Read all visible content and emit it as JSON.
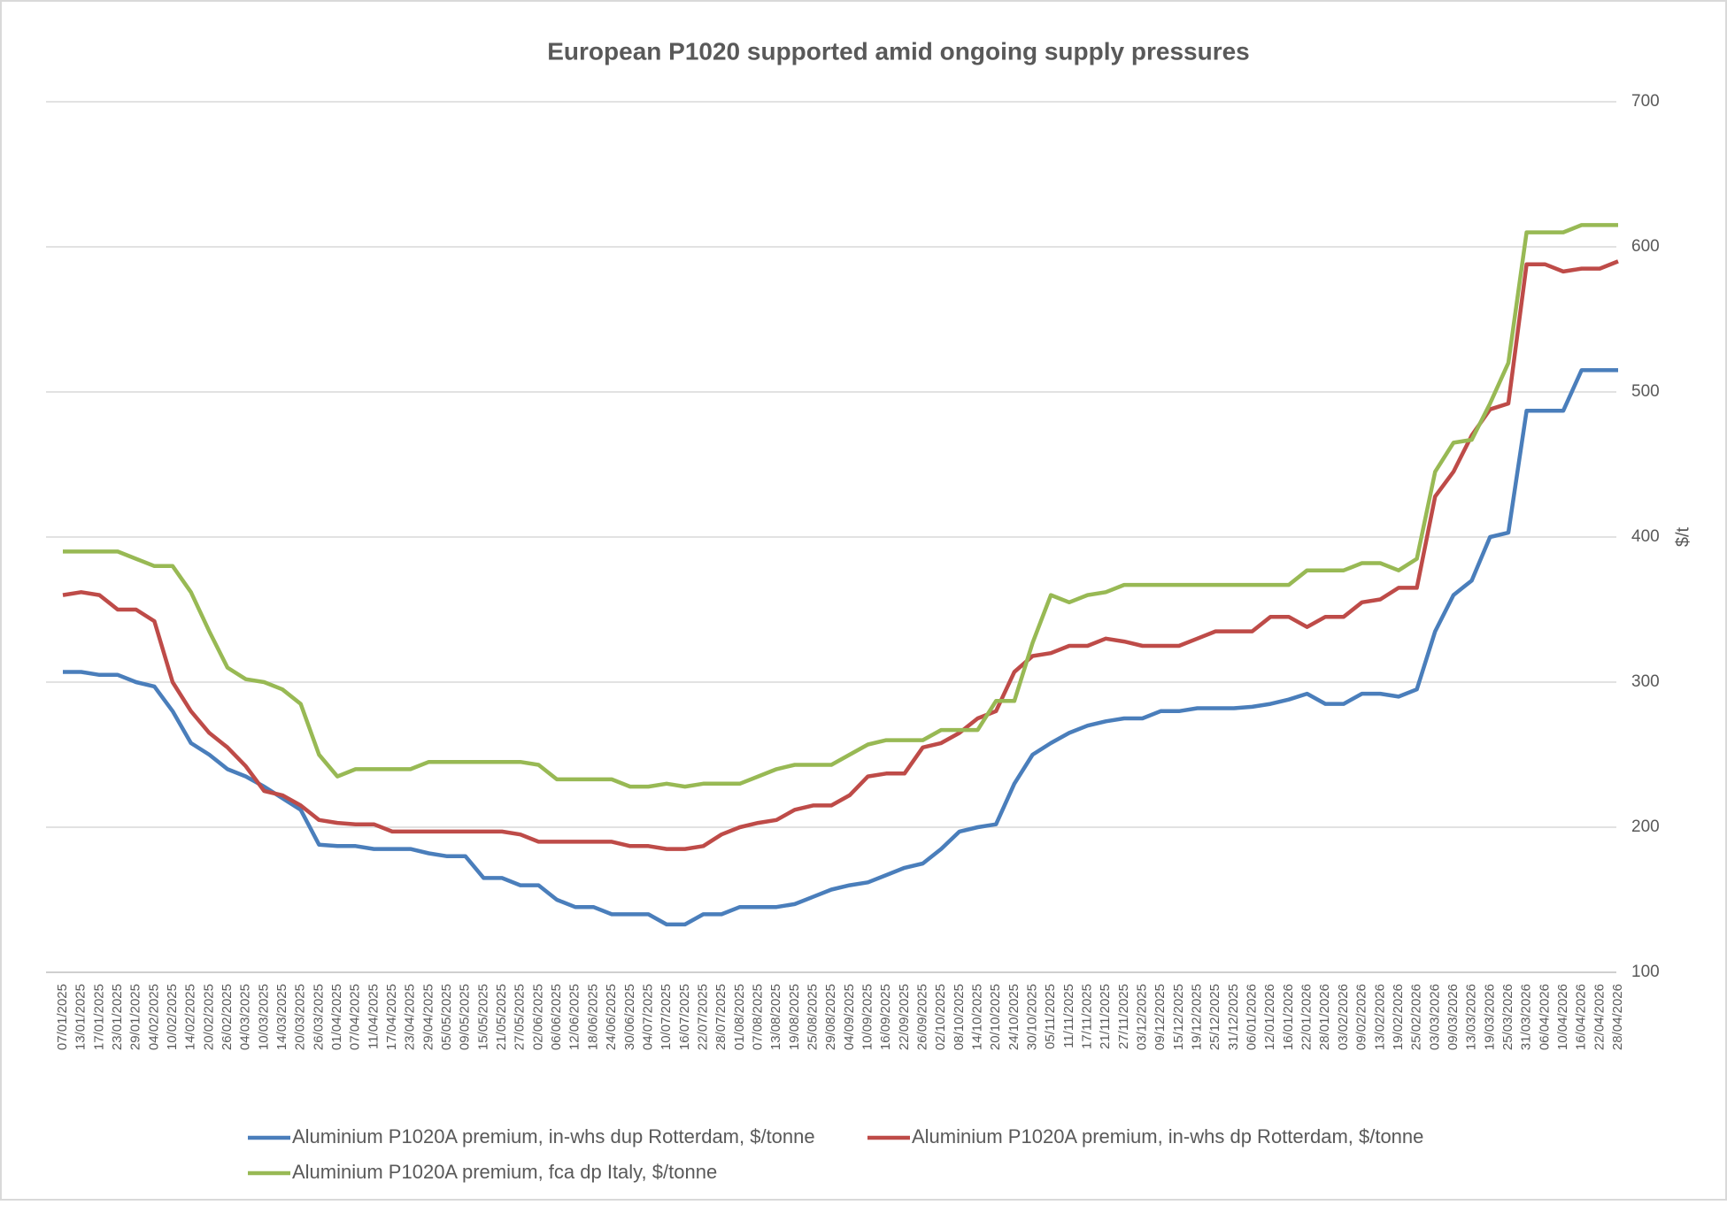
{
  "chart_data": {
    "type": "line",
    "title": "European P1020 supported amid ongoing supply pressures",
    "y_axis_label": "$/t",
    "categories": [
      "07/01/2025",
      "13/01/2025",
      "17/01/2025",
      "23/01/2025",
      "29/01/2025",
      "04/02/2025",
      "10/02/2025",
      "14/02/2025",
      "20/02/2025",
      "26/02/2025",
      "04/03/2025",
      "10/03/2025",
      "14/03/2025",
      "20/03/2025",
      "26/03/2025",
      "01/04/2025",
      "07/04/2025",
      "11/04/2025",
      "17/04/2025",
      "23/04/2025",
      "29/04/2025",
      "05/05/2025",
      "09/05/2025",
      "15/05/2025",
      "21/05/2025",
      "27/05/2025",
      "02/06/2025",
      "06/06/2025",
      "12/06/2025",
      "18/06/2025",
      "24/06/2025",
      "30/06/2025",
      "04/07/2025",
      "10/07/2025",
      "16/07/2025",
      "22/07/2025",
      "28/07/2025",
      "01/08/2025",
      "07/08/2025",
      "13/08/2025",
      "19/08/2025",
      "25/08/2025",
      "29/08/2025",
      "04/09/2025",
      "10/09/2025",
      "16/09/2025",
      "22/09/2025",
      "26/09/2025",
      "02/10/2025",
      "08/10/2025",
      "14/10/2025",
      "20/10/2025",
      "24/10/2025",
      "30/10/2025",
      "05/11/2025",
      "11/11/2025",
      "17/11/2025",
      "21/11/2025",
      "27/11/2025",
      "03/12/2025",
      "09/12/2025",
      "15/12/2025",
      "19/12/2025",
      "25/12/2025",
      "31/12/2025",
      "06/01/2026",
      "12/01/2026",
      "16/01/2026",
      "22/01/2026",
      "28/01/2026",
      "03/02/2026",
      "09/02/2026",
      "13/02/2026",
      "19/02/2026",
      "25/02/2026",
      "03/03/2026",
      "09/03/2026",
      "13/03/2026",
      "19/03/2026",
      "25/03/2026",
      "31/03/2026",
      "06/04/2026",
      "10/04/2026",
      "16/04/2026",
      "22/04/2026",
      "28/04/2026"
    ],
    "series": [
      {
        "name": "Aluminium P1020A premium, in-whs dup Rotterdam, $/tonne",
        "color": "#4a7ebb",
        "values": [
          307,
          307,
          305,
          305,
          300,
          297,
          280,
          258,
          250,
          240,
          235,
          228,
          220,
          212,
          188,
          187,
          187,
          185,
          185,
          185,
          182,
          180,
          180,
          165,
          165,
          160,
          160,
          150,
          145,
          145,
          140,
          140,
          140,
          133,
          133,
          140,
          140,
          145,
          145,
          145,
          147,
          152,
          157,
          160,
          162,
          167,
          172,
          175,
          185,
          197,
          200,
          202,
          230,
          250,
          258,
          265,
          270,
          273,
          275,
          275,
          280,
          280,
          282,
          282,
          282,
          283,
          285,
          288,
          292,
          285,
          285,
          292,
          292,
          290,
          295,
          335,
          360,
          370,
          400,
          403,
          487,
          487,
          487,
          515,
          515,
          515
        ]
      },
      {
        "name": "Aluminium P1020A premium, in-whs dp Rotterdam, $/tonne",
        "color": "#be4b48",
        "values": [
          360,
          362,
          360,
          350,
          350,
          342,
          300,
          280,
          265,
          255,
          242,
          225,
          222,
          215,
          205,
          203,
          202,
          202,
          197,
          197,
          197,
          197,
          197,
          197,
          197,
          195,
          190,
          190,
          190,
          190,
          190,
          187,
          187,
          185,
          185,
          187,
          195,
          200,
          203,
          205,
          212,
          215,
          215,
          222,
          235,
          237,
          237,
          255,
          258,
          265,
          275,
          280,
          307,
          318,
          320,
          325,
          325,
          330,
          328,
          325,
          325,
          325,
          330,
          335,
          335,
          335,
          345,
          345,
          338,
          345,
          345,
          355,
          357,
          365,
          365,
          428,
          445,
          470,
          488,
          492,
          588,
          588,
          583,
          585,
          585,
          590
        ]
      },
      {
        "name": "Aluminium P1020A premium, fca dp Italy, $/tonne",
        "color": "#98b954",
        "values": [
          390,
          390,
          390,
          390,
          385,
          380,
          380,
          362,
          335,
          310,
          302,
          300,
          295,
          285,
          250,
          235,
          240,
          240,
          240,
          240,
          245,
          245,
          245,
          245,
          245,
          245,
          243,
          233,
          233,
          233,
          233,
          228,
          228,
          230,
          228,
          230,
          230,
          230,
          235,
          240,
          243,
          243,
          243,
          250,
          257,
          260,
          260,
          260,
          267,
          267,
          267,
          287,
          287,
          327,
          360,
          355,
          360,
          362,
          367,
          367,
          367,
          367,
          367,
          367,
          367,
          367,
          367,
          367,
          377,
          377,
          377,
          382,
          382,
          377,
          385,
          445,
          465,
          467,
          492,
          520,
          610,
          610,
          610,
          615,
          615,
          615
        ]
      }
    ],
    "ylim": [
      100,
      700
    ],
    "yticks": [
      100,
      200,
      300,
      400,
      500,
      600,
      700
    ],
    "grid": true,
    "legend": "bottom"
  }
}
